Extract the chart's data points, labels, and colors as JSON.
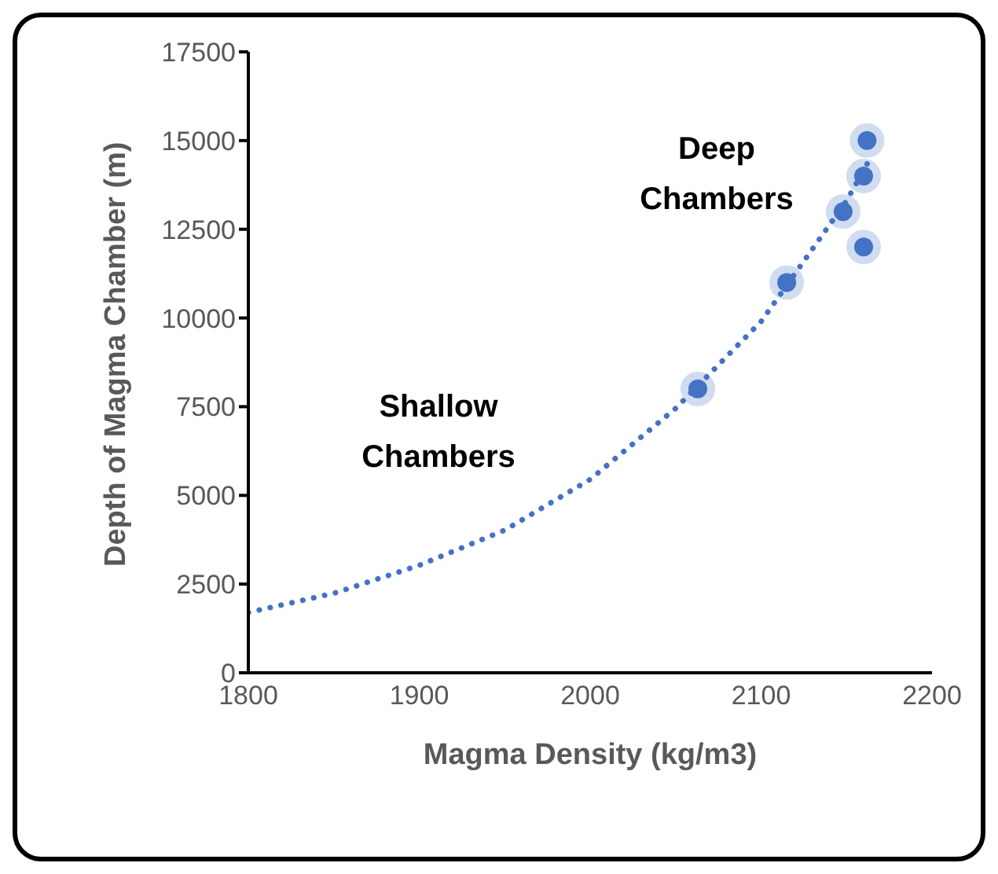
{
  "chart_data": {
    "type": "scatter",
    "xlabel": "Magma Density (kg/m3)",
    "ylabel": "Depth of Magma Chamber (m)",
    "xlim": [
      1800,
      2200
    ],
    "xticks": [
      1800,
      1900,
      2000,
      2100,
      2200
    ],
    "ylim": [
      0,
      17500
    ],
    "yticks": [
      0,
      2500,
      5000,
      7500,
      10000,
      12500,
      15000,
      17500
    ],
    "grid": false,
    "marker": "circle",
    "series": [
      {
        "color": "#4472c4",
        "x": [
          2063,
          2115,
          2148,
          2160,
          2162,
          2160
        ],
        "values": [
          8000,
          11000,
          13000,
          14000,
          15000,
          12000
        ]
      },
      {
        "type": "line",
        "color": "#4472c4",
        "line_style": "dotted",
        "marker": "none",
        "x": [
          1800,
          1850,
          1900,
          1950,
          2000,
          2050,
          2100,
          2150,
          2165
        ],
        "values": [
          1700,
          2240,
          3030,
          4020,
          5450,
          7450,
          9900,
          13300,
          14600
        ]
      }
    ],
    "annotations": [
      "Deep Chambers",
      "Shallow Chambers"
    ]
  }
}
